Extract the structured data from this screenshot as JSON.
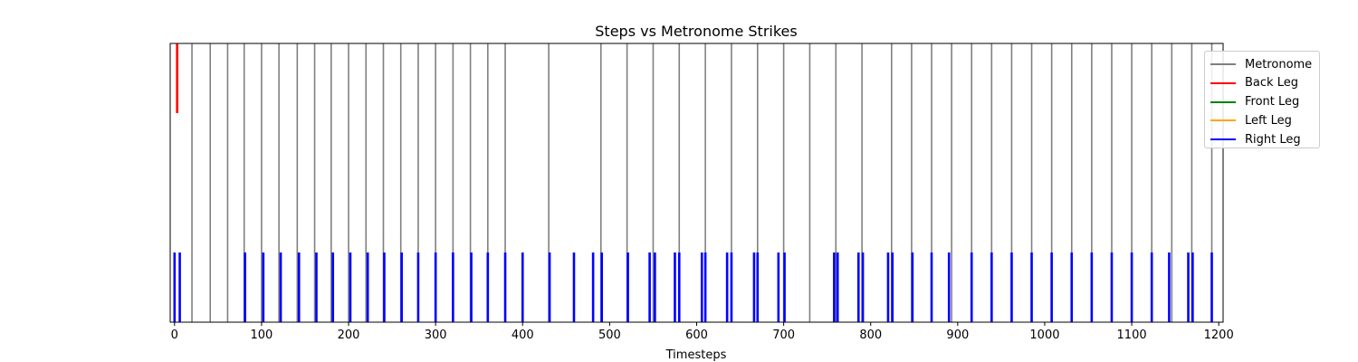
{
  "chart_data": {
    "type": "event-lines",
    "title": "Steps vs Metronome Strikes",
    "xlabel": "Timesteps",
    "ylabel": "",
    "xlim": [
      -5,
      1205
    ],
    "x_ticks": [
      0,
      100,
      200,
      300,
      400,
      500,
      600,
      700,
      800,
      900,
      1000,
      1100,
      1200
    ],
    "y_ticks": [],
    "grid": false,
    "legend_placement": "right, outside plot near top",
    "legend": [
      "Metronome",
      "Back Leg",
      "Front Leg",
      "Left Leg",
      "Right Leg"
    ],
    "series": [
      {
        "name": "Metronome",
        "color": "#808080",
        "y_range": [
          0,
          1
        ],
        "x": [
          20,
          41,
          61,
          80,
          100,
          120,
          141,
          161,
          180,
          200,
          220,
          240,
          260,
          280,
          300,
          320,
          340,
          360,
          380,
          430,
          490,
          520,
          550,
          580,
          610,
          640,
          670,
          700,
          730,
          760,
          790,
          824,
          847,
          870,
          893,
          916,
          939,
          962,
          985,
          1008,
          1031,
          1054,
          1077,
          1100,
          1123,
          1146,
          1169,
          1192
        ]
      },
      {
        "name": "Back Leg",
        "color": "#ff0000",
        "y_range": [
          0.75,
          1
        ],
        "x": [
          3
        ]
      },
      {
        "name": "Front Leg",
        "color": "#008000",
        "y_range": [
          0,
          0.25
        ],
        "x": []
      },
      {
        "name": "Left Leg",
        "color": "#ffa500",
        "y_range": [
          0,
          0.25
        ],
        "x": []
      },
      {
        "name": "Right Leg",
        "color": "#0000ff",
        "y_range": [
          0,
          0.25
        ],
        "x": [
          0,
          6,
          81,
          102,
          122,
          143,
          163,
          182,
          202,
          222,
          241,
          261,
          280,
          300,
          320,
          341,
          360,
          380,
          400,
          431,
          459,
          481,
          491,
          521,
          546,
          552,
          575,
          580,
          606,
          610,
          635,
          640,
          666,
          670,
          694,
          701,
          758,
          762,
          786,
          791,
          820,
          825,
          848,
          870,
          890,
          916,
          939,
          962,
          985,
          1008,
          1031,
          1054,
          1077,
          1100,
          1123,
          1143,
          1165,
          1170,
          1192
        ]
      }
    ]
  }
}
